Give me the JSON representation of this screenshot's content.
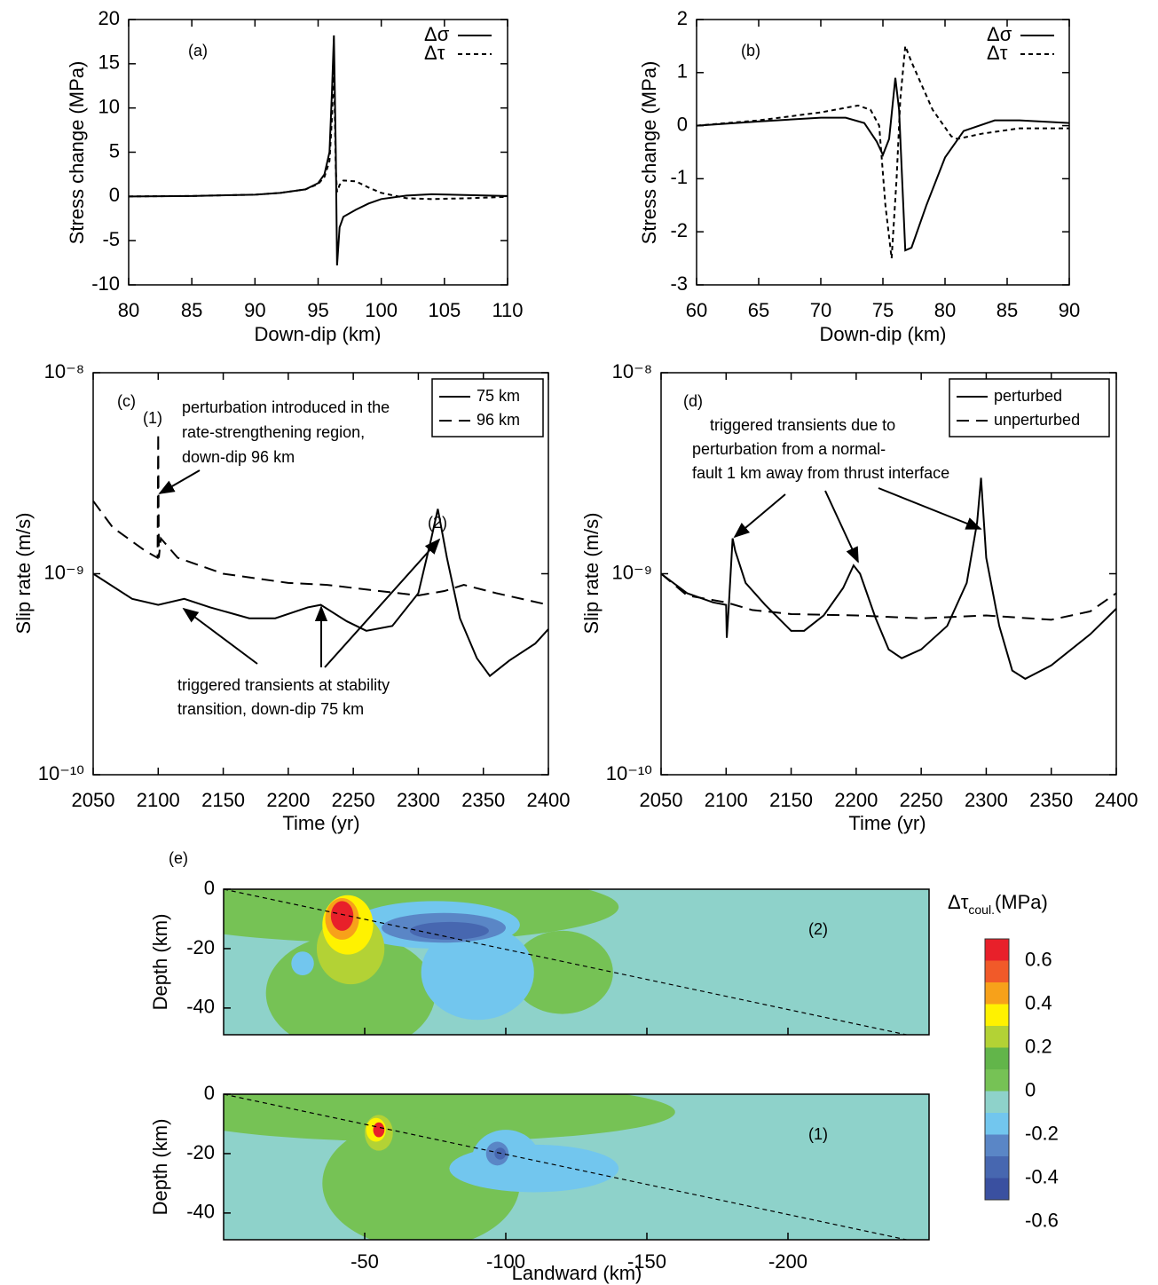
{
  "chart_data": [
    {
      "type": "line",
      "panel_label": "(a)",
      "xlabel": "Down-dip (km)",
      "ylabel": "Stress change (MPa)",
      "xlim": [
        80,
        110
      ],
      "ylim": [
        -10,
        20
      ],
      "xticks": [
        80,
        85,
        90,
        95,
        100,
        105,
        110
      ],
      "yticks": [
        -10,
        -5,
        0,
        5,
        10,
        15,
        20
      ],
      "legend": "upper right",
      "series": [
        {
          "name": "Δσ",
          "color": "#000000",
          "linestyle": "solid",
          "x": [
            80,
            85,
            90,
            92,
            94,
            95,
            95.5,
            95.9,
            96.1,
            96.25,
            96.4,
            96.5,
            96.7,
            97,
            98,
            99,
            100,
            102,
            104,
            107,
            110
          ],
          "values": [
            0,
            0.05,
            0.2,
            0.4,
            0.8,
            1.5,
            2.5,
            5,
            12,
            18.2,
            5,
            -7.8,
            -3.5,
            -2.3,
            -1.5,
            -0.8,
            -0.3,
            0.1,
            0.25,
            0.15,
            0.05
          ]
        },
        {
          "name": "Δτ",
          "color": "#000000",
          "linestyle": "dashed",
          "x": [
            80,
            85,
            90,
            92,
            94,
            95,
            95.5,
            95.9,
            96.1,
            96.25,
            96.4,
            96.5,
            96.7,
            97,
            98,
            99,
            100,
            102,
            104,
            107,
            110
          ],
          "values": [
            0,
            0.05,
            0.2,
            0.4,
            0.8,
            1.4,
            2.2,
            4,
            9,
            15,
            3,
            0.5,
            1.3,
            1.8,
            1.7,
            1,
            0.4,
            -0.2,
            -0.3,
            -0.2,
            -0.05
          ]
        }
      ]
    },
    {
      "type": "line",
      "panel_label": "(b)",
      "xlabel": "Down-dip (km)",
      "ylabel": "Stress change (MPa)",
      "xlim": [
        60,
        90
      ],
      "ylim": [
        -3,
        2
      ],
      "xticks": [
        60,
        65,
        70,
        75,
        80,
        85,
        90
      ],
      "yticks": [
        -3,
        -2,
        -1,
        0,
        1,
        2
      ],
      "legend": "upper right",
      "series": [
        {
          "name": "Δσ",
          "color": "#000000",
          "linestyle": "solid",
          "x": [
            60,
            65,
            70,
            72,
            73.5,
            74.5,
            75,
            75.5,
            76,
            76.3,
            76.8,
            77.3,
            78.5,
            80,
            81.5,
            84,
            86,
            90
          ],
          "values": [
            0,
            0.08,
            0.15,
            0.15,
            0.05,
            -0.3,
            -0.55,
            -0.25,
            0.9,
            0.3,
            -2.35,
            -2.3,
            -1.5,
            -0.6,
            -0.1,
            0.1,
            0.1,
            0.05
          ]
        },
        {
          "name": "Δτ",
          "color": "#000000",
          "linestyle": "dashed",
          "x": [
            60,
            65,
            70,
            73,
            74,
            74.7,
            75.2,
            75.7,
            76.1,
            76.4,
            76.8,
            77.3,
            79,
            80.5,
            81,
            83,
            86,
            90
          ],
          "values": [
            0,
            0.1,
            0.25,
            0.38,
            0.3,
            0,
            -1.5,
            -2.5,
            -1,
            0.5,
            1.5,
            1.2,
            0.3,
            -0.2,
            -0.25,
            -0.15,
            -0.05,
            -0.05
          ]
        }
      ]
    },
    {
      "type": "line",
      "ylog": true,
      "panel_label": "(c)",
      "xlabel": "Time (yr)",
      "ylabel": "Slip rate (m/s)",
      "xlim": [
        2050,
        2400
      ],
      "ylim": [
        1e-10,
        1e-08
      ],
      "xticks": [
        2050,
        2100,
        2150,
        2200,
        2250,
        2300,
        2350,
        2400
      ],
      "yticks": [
        {
          "value": 1e-10,
          "label": "10⁻¹⁰"
        },
        {
          "value": 1e-09,
          "label": "10⁻⁹"
        },
        {
          "value": 1e-08,
          "label": "10⁻⁸"
        }
      ],
      "legend": "upper right",
      "annotations": [
        "(1)",
        "perturbation introduced in the",
        "rate-strengthening region,",
        "down-dip 96 km",
        "(2)",
        "triggered transients at stability",
        "transition, down-dip 75 km"
      ],
      "series": [
        {
          "name": "75 km",
          "color": "#000000",
          "linestyle": "solid",
          "x": [
            2050,
            2080,
            2100,
            2120,
            2140,
            2170,
            2190,
            2215,
            2225,
            2245,
            2260,
            2280,
            2300,
            2310,
            2315,
            2322,
            2332,
            2345,
            2355,
            2370,
            2390,
            2400
          ],
          "values": [
            1e-09,
            7.5e-10,
            7e-10,
            7.5e-10,
            6.8e-10,
            6e-10,
            6e-10,
            6.8e-10,
            7e-10,
            5.8e-10,
            5.2e-10,
            5.5e-10,
            8e-10,
            1.5e-09,
            2.1e-09,
            1.2e-09,
            6e-10,
            3.8e-10,
            3.1e-10,
            3.7e-10,
            4.5e-10,
            5.3e-10
          ]
        },
        {
          "name": "96 km",
          "color": "#000000",
          "linestyle": "dashed",
          "x": [
            2050,
            2065,
            2090,
            2099.5,
            2100,
            2100.5,
            2102,
            2115,
            2150,
            2200,
            2230,
            2270,
            2300,
            2320,
            2335,
            2360,
            2400
          ],
          "values": [
            2.3e-09,
            1.7e-09,
            1.3e-09,
            1.2e-09,
            5e-09,
            1.2e-09,
            1.5e-09,
            1.2e-09,
            1e-09,
            9e-10,
            8.8e-10,
            8.2e-10,
            7.8e-10,
            8.2e-10,
            8.8e-10,
            8e-10,
            7e-10
          ]
        }
      ]
    },
    {
      "type": "line",
      "ylog": true,
      "panel_label": "(d)",
      "xlabel": "Time (yr)",
      "ylabel": "Slip rate (m/s)",
      "xlim": [
        2050,
        2400
      ],
      "ylim": [
        1e-10,
        1e-08
      ],
      "xticks": [
        2050,
        2100,
        2150,
        2200,
        2250,
        2300,
        2350,
        2400
      ],
      "yticks": [
        {
          "value": 1e-10,
          "label": "10⁻¹⁰"
        },
        {
          "value": 1e-09,
          "label": "10⁻⁹"
        },
        {
          "value": 1e-08,
          "label": "10⁻⁸"
        }
      ],
      "legend": "upper right",
      "annotations": [
        "triggered transients due to",
        "perturbation from a normal-",
        "fault 1 km away from thrust interface"
      ],
      "series": [
        {
          "name": "perturbed",
          "color": "#000000",
          "linestyle": "solid",
          "x": [
            2050,
            2070,
            2090,
            2100,
            2100.5,
            2102,
            2105,
            2107,
            2115,
            2130,
            2150,
            2160,
            2175,
            2190,
            2198,
            2203,
            2215,
            2225,
            2235,
            2250,
            2270,
            2285,
            2293,
            2296,
            2300,
            2310,
            2320,
            2330,
            2350,
            2380,
            2400
          ],
          "values": [
            1e-09,
            8e-10,
            7.2e-10,
            7e-10,
            4.8e-10,
            6.8e-10,
            1.5e-09,
            1.3e-09,
            9e-10,
            7e-10,
            5.2e-10,
            5.2e-10,
            6.2e-10,
            8.5e-10,
            1.1e-09,
            1e-09,
            6e-10,
            4.2e-10,
            3.8e-10,
            4.2e-10,
            5.5e-10,
            9e-10,
            1.8e-09,
            3e-09,
            1.2e-09,
            5.5e-10,
            3.3e-10,
            3e-10,
            3.5e-10,
            5e-10,
            6.7e-10
          ]
        },
        {
          "name": "unperturbed",
          "color": "#000000",
          "linestyle": "dashed",
          "x": [
            2050,
            2070,
            2100,
            2120,
            2150,
            2200,
            2250,
            2300,
            2350,
            2380,
            2400
          ],
          "values": [
            1e-09,
            7.8e-10,
            7.2e-10,
            6.6e-10,
            6.3e-10,
            6.2e-10,
            6e-10,
            6.2e-10,
            5.9e-10,
            6.5e-10,
            8e-10
          ]
        }
      ]
    },
    {
      "type": "contour",
      "panel_label": "(e)",
      "xlabel": "Landward (km)",
      "ylabel": "Depth (km)",
      "xlim": [
        0,
        -250
      ],
      "ylim": [
        -49,
        0
      ],
      "xticks": [
        -50,
        -100,
        -150,
        -200
      ],
      "yticks": [
        0,
        -20,
        -40
      ],
      "colorbar": {
        "title": "Δτ",
        "title_sub": "coul.",
        "title_unit": "(MPa)",
        "bounds": [
          -0.5,
          -0.4,
          -0.3,
          -0.2,
          -0.1,
          0,
          0.1,
          0.2,
          0.3,
          0.4,
          0.5,
          0.6,
          0.7
        ],
        "colors": [
          "#3a50a0",
          "#4767b0",
          "#5a86c6",
          "#72c6ee",
          "#8ed2ca",
          "#76c255",
          "#62b54a",
          "#b3d235",
          "#fff200",
          "#f7a11a",
          "#f15a29",
          "#e8202a"
        ],
        "ticks": [
          0.6,
          0.4,
          0.2,
          0,
          -0.2,
          -0.4,
          -0.6
        ]
      },
      "maps": [
        {
          "label": "(2)",
          "background_level": -0.05,
          "fault": {
            "x": [
              0,
              -242
            ],
            "y": [
              0,
              -49
            ]
          },
          "regions": [
            {
              "level": 0.05,
              "x": -55,
              "y": -6,
              "rx": 85,
              "ry": 12
            },
            {
              "level": 0.05,
              "x": -45,
              "y": -35,
              "rx": 30,
              "ry": 20
            },
            {
              "level": 0.05,
              "x": -120,
              "y": -28,
              "rx": 18,
              "ry": 14
            },
            {
              "level": -0.15,
              "x": -90,
              "y": -28,
              "rx": 20,
              "ry": 16
            },
            {
              "level": -0.15,
              "x": -75,
              "y": -12,
              "rx": 30,
              "ry": 8
            },
            {
              "level": -0.15,
              "x": -28,
              "y": -25,
              "rx": 4,
              "ry": 4
            },
            {
              "level": -0.25,
              "x": -78,
              "y": -13,
              "rx": 22,
              "ry": 5
            },
            {
              "level": -0.35,
              "x": -80,
              "y": -14,
              "rx": 14,
              "ry": 3
            },
            {
              "level": 0.25,
              "x": -45,
              "y": -20,
              "rx": 12,
              "ry": 12
            },
            {
              "level": 0.35,
              "x": -44,
              "y": -12,
              "rx": 9,
              "ry": 10
            },
            {
              "level": 0.45,
              "x": -42,
              "y": -10,
              "rx": 6,
              "ry": 7
            },
            {
              "level": 0.65,
              "x": -42,
              "y": -9,
              "rx": 4,
              "ry": 5
            }
          ]
        },
        {
          "label": "(1)",
          "background_level": -0.05,
          "fault": {
            "x": [
              0,
              -242
            ],
            "y": [
              0,
              -49
            ]
          },
          "regions": [
            {
              "level": 0.05,
              "x": -70,
              "y": -6,
              "rx": 90,
              "ry": 10
            },
            {
              "level": 0.05,
              "x": -70,
              "y": -30,
              "rx": 35,
              "ry": 22
            },
            {
              "level": -0.15,
              "x": -110,
              "y": -25,
              "rx": 30,
              "ry": 8
            },
            {
              "level": -0.15,
              "x": -100,
              "y": -22,
              "rx": 12,
              "ry": 10
            },
            {
              "level": -0.25,
              "x": -97,
              "y": -20,
              "rx": 4,
              "ry": 4
            },
            {
              "level": -0.35,
              "x": -98,
              "y": -20,
              "rx": 2,
              "ry": 2
            },
            {
              "level": 0.25,
              "x": -55,
              "y": -13,
              "rx": 5,
              "ry": 6
            },
            {
              "level": 0.35,
              "x": -54,
              "y": -12,
              "rx": 3.5,
              "ry": 4
            },
            {
              "level": 0.65,
              "x": -55,
              "y": -12,
              "rx": 2,
              "ry": 2.5
            }
          ]
        }
      ]
    }
  ]
}
